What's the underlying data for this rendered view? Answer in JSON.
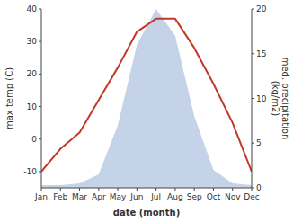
{
  "chart_data": {
    "type": "line",
    "categories": [
      "Jan",
      "Feb",
      "Mar",
      "Apr",
      "May",
      "Jun",
      "Jul",
      "Aug",
      "Sep",
      "Oct",
      "Nov",
      "Dec"
    ],
    "xlabel": "date (month)",
    "ylabel": "max temp (C)",
    "y2label": "med. precipitation\n(kg/m2)",
    "ylim": [
      -15,
      40
    ],
    "yticks": [
      -10,
      0,
      10,
      20,
      30,
      40
    ],
    "y2lim": [
      0,
      20
    ],
    "y2ticks": [
      0,
      5,
      10,
      15,
      20
    ],
    "grid": false,
    "series": [
      {
        "type": "area",
        "axis": "y2",
        "color": "#c5d3e8",
        "values": [
          0.3,
          0.3,
          0.5,
          1.5,
          7.0,
          16.0,
          20.0,
          17.0,
          8.0,
          2.0,
          0.5,
          0.3
        ]
      },
      {
        "type": "line",
        "color": "#c0392b",
        "values": [
          -10,
          -3,
          2,
          12,
          22,
          33,
          37,
          37,
          28,
          17,
          5,
          -10
        ]
      }
    ]
  }
}
